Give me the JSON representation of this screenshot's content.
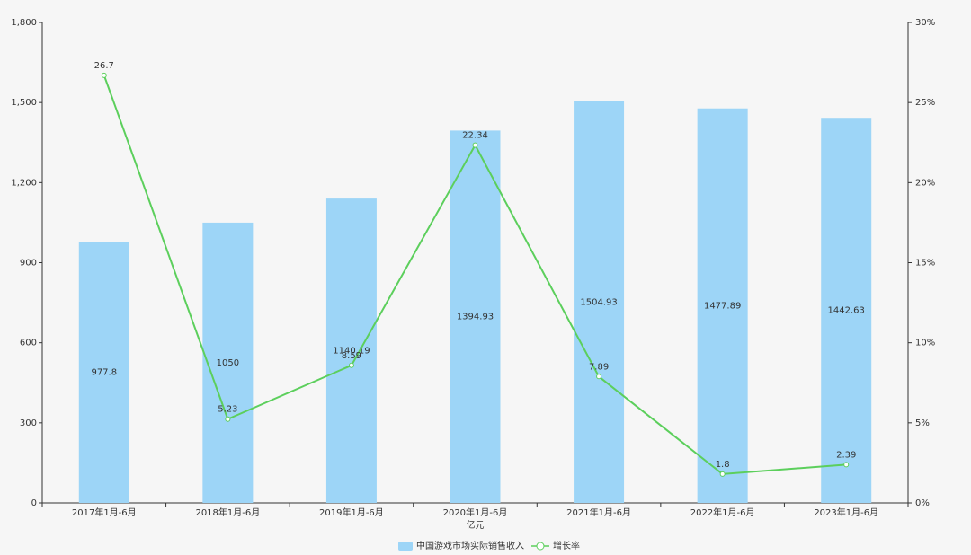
{
  "chart_data": {
    "type": "bar",
    "categories": [
      "2017年1月-6月",
      "2018年1月-6月",
      "2019年1月-6月",
      "2020年1月-6月",
      "2021年1月-6月",
      "2022年1月-6月",
      "2023年1月-6月"
    ],
    "x_label": "亿元",
    "series": [
      {
        "name": "中国游戏市场实际销售收入",
        "type": "bar",
        "color": "#9dd5f7",
        "values": [
          977.8,
          1050,
          1140.19,
          1394.93,
          1504.93,
          1477.89,
          1442.63
        ]
      },
      {
        "name": "增长率",
        "type": "line",
        "axis": "y2",
        "color": "#5ccf5c",
        "values": [
          26.7,
          5.23,
          8.59,
          22.34,
          7.89,
          1.8,
          2.39
        ]
      }
    ],
    "ylim": [
      0,
      1800
    ],
    "yticks": [
      0,
      300,
      600,
      900,
      {
        "value": 1200,
        "label": "1,200"
      },
      {
        "value": 1500,
        "label": "1,500"
      },
      {
        "value": 1800,
        "label": "1,800"
      }
    ],
    "y2lim": [
      0,
      30
    ],
    "y2ticks": [
      {
        "value": 0,
        "label": "0%"
      },
      {
        "value": 5,
        "label": "5%"
      },
      {
        "value": 10,
        "label": "10%"
      },
      {
        "value": 15,
        "label": "15%"
      },
      {
        "value": 20,
        "label": "20%"
      },
      {
        "value": 25,
        "label": "25%"
      },
      {
        "value": 30,
        "label": "30%"
      }
    ],
    "legend": "bottom"
  }
}
